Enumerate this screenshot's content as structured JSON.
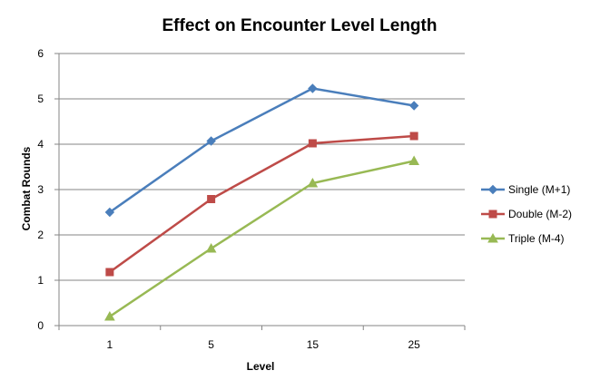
{
  "chart_data": {
    "type": "line",
    "title": "Effect on Encounter Level Length",
    "xlabel": "Level",
    "ylabel": "Combat Rounds",
    "categories": [
      "1",
      "5",
      "15",
      "25"
    ],
    "ylim": [
      0,
      6
    ],
    "yticks": [
      0,
      1,
      2,
      3,
      4,
      5,
      6
    ],
    "grid": true,
    "legend_position": "right",
    "series": [
      {
        "name": "Single (M+1)",
        "values": [
          2.5,
          4.07,
          5.23,
          4.85
        ],
        "color": "#4a7ebb",
        "marker": "diamond"
      },
      {
        "name": "Double (M-2)",
        "values": [
          1.18,
          2.79,
          4.02,
          4.18
        ],
        "color": "#be4b48",
        "marker": "square"
      },
      {
        "name": "Triple (M-4)",
        "values": [
          0.2,
          1.7,
          3.14,
          3.63
        ],
        "color": "#98b954",
        "marker": "triangle"
      }
    ]
  }
}
